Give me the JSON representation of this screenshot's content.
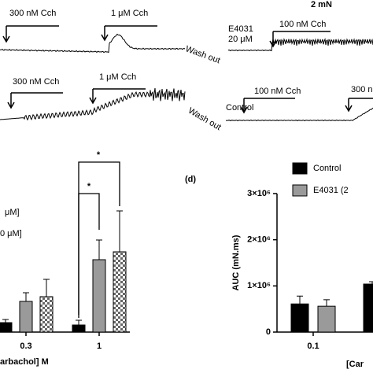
{
  "traces": {
    "scale": "2 mN",
    "row1": [
      "300 nM Cch",
      "1 μM Cch",
      "Wash out",
      "E4031",
      "20 μM",
      "100 nM Cch"
    ],
    "row2": [
      "300 nM Cch",
      "1 μM Cch",
      "Wash out",
      "Control",
      "100 nM Cch",
      "300 n"
    ]
  },
  "chart_data": [
    {
      "type": "bar",
      "categories": [
        "0.3",
        "1"
      ],
      "xlabel": "arbachol] M",
      "series": [
        {
          "color": "#000000",
          "pattern": "solid",
          "values": [
            6,
            4.5
          ],
          "errors": [
            2,
            3
          ]
        },
        {
          "name": "μM]",
          "color": "#9a9a9a",
          "pattern": "solid",
          "values": [
            19.5,
            46
          ],
          "errors": [
            5.5,
            12.5
          ]
        },
        {
          "name": "0 μM]",
          "color": "#ffffff",
          "pattern": "checker",
          "values": [
            22.5,
            51
          ],
          "errors": [
            11,
            26
          ]
        }
      ],
      "ylim": [
        0,
        100
      ],
      "annotations": [
        "*",
        "*"
      ]
    },
    {
      "type": "bar",
      "panel_label": "(d)",
      "categories": [
        "0.1",
        null
      ],
      "xlabel": "[Car",
      "ylabel": "AUC (mN.ms)",
      "series": [
        {
          "name": "Control",
          "color": "#000000",
          "pattern": "solid",
          "values": [
            610000,
            1040000
          ],
          "errors": [
            170000,
            50000
          ]
        },
        {
          "name": "E4031 (2",
          "color": "#9a9a9a",
          "pattern": "solid",
          "values": [
            560000,
            null
          ],
          "errors": [
            140000,
            null
          ]
        }
      ],
      "ylim": [
        0,
        3000000
      ],
      "yticks": [
        0,
        {
          "value": 1000000,
          "label": "1×10⁶"
        },
        {
          "value": 2000000,
          "label": "2×10⁶"
        },
        {
          "value": 3000000,
          "label": "3×10⁶"
        }
      ]
    }
  ]
}
